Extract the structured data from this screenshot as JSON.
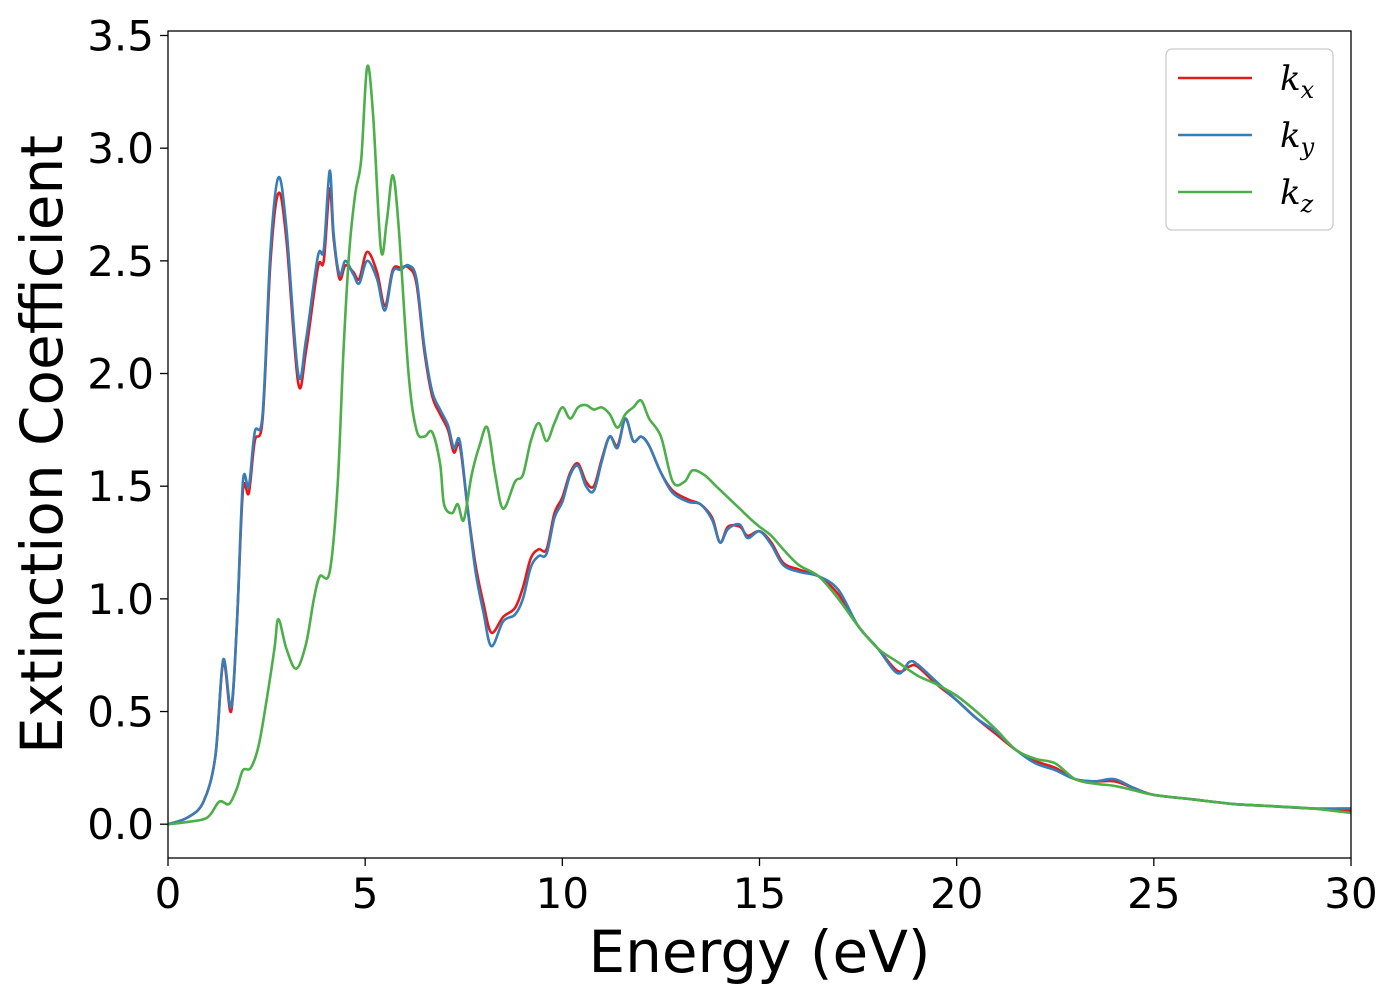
{
  "chart_data": {
    "type": "line",
    "xlabel": "Energy (eV)",
    "ylabel": "Extinction Coefficient",
    "xlim": [
      0,
      30
    ],
    "ylim": [
      -0.15,
      3.52
    ],
    "xticks": [
      0,
      5,
      10,
      15,
      20,
      25,
      30
    ],
    "yticks": [
      0.0,
      0.5,
      1.0,
      1.5,
      2.0,
      2.5,
      3.0,
      3.5
    ],
    "xtick_labels": [
      "0",
      "5",
      "10",
      "15",
      "20",
      "25",
      "30"
    ],
    "ytick_labels": [
      "0.0",
      "0.5",
      "1.0",
      "1.5",
      "2.0",
      "2.5",
      "3.0",
      "3.5"
    ],
    "grid": false,
    "legend_position": "top-right",
    "series": [
      {
        "name": "k_x",
        "label_base": "k",
        "label_sub": "x",
        "color": "#e41a1c",
        "points": [
          [
            0,
            0
          ],
          [
            0.5,
            0.03
          ],
          [
            0.9,
            0.1
          ],
          [
            1.2,
            0.3
          ],
          [
            1.4,
            0.72
          ],
          [
            1.6,
            0.5
          ],
          [
            1.75,
            0.9
          ],
          [
            1.9,
            1.48
          ],
          [
            2.05,
            1.47
          ],
          [
            2.2,
            1.7
          ],
          [
            2.4,
            1.8
          ],
          [
            2.6,
            2.5
          ],
          [
            2.8,
            2.8
          ],
          [
            3,
            2.6
          ],
          [
            3.3,
            1.96
          ],
          [
            3.5,
            2.1
          ],
          [
            3.8,
            2.47
          ],
          [
            3.95,
            2.5
          ],
          [
            4.1,
            2.82
          ],
          [
            4.2,
            2.6
          ],
          [
            4.35,
            2.42
          ],
          [
            4.5,
            2.48
          ],
          [
            4.7,
            2.45
          ],
          [
            4.85,
            2.42
          ],
          [
            5.05,
            2.54
          ],
          [
            5.3,
            2.45
          ],
          [
            5.5,
            2.3
          ],
          [
            5.7,
            2.46
          ],
          [
            5.9,
            2.47
          ],
          [
            6.1,
            2.47
          ],
          [
            6.3,
            2.4
          ],
          [
            6.5,
            2.1
          ],
          [
            6.7,
            1.9
          ],
          [
            6.9,
            1.82
          ],
          [
            7.1,
            1.75
          ],
          [
            7.25,
            1.65
          ],
          [
            7.4,
            1.68
          ],
          [
            7.6,
            1.4
          ],
          [
            7.8,
            1.15
          ],
          [
            8.0,
            0.98
          ],
          [
            8.2,
            0.85
          ],
          [
            8.5,
            0.92
          ],
          [
            8.8,
            0.96
          ],
          [
            9.0,
            1.05
          ],
          [
            9.2,
            1.18
          ],
          [
            9.4,
            1.22
          ],
          [
            9.6,
            1.22
          ],
          [
            9.8,
            1.38
          ],
          [
            10.0,
            1.45
          ],
          [
            10.2,
            1.56
          ],
          [
            10.4,
            1.6
          ],
          [
            10.6,
            1.52
          ],
          [
            10.8,
            1.5
          ],
          [
            11.0,
            1.62
          ],
          [
            11.2,
            1.72
          ],
          [
            11.4,
            1.68
          ],
          [
            11.6,
            1.8
          ],
          [
            11.8,
            1.7
          ],
          [
            12.0,
            1.72
          ],
          [
            12.2,
            1.68
          ],
          [
            12.5,
            1.56
          ],
          [
            12.8,
            1.48
          ],
          [
            13.2,
            1.44
          ],
          [
            13.5,
            1.42
          ],
          [
            13.8,
            1.36
          ],
          [
            14.0,
            1.25
          ],
          [
            14.2,
            1.32
          ],
          [
            14.5,
            1.32
          ],
          [
            14.7,
            1.28
          ],
          [
            15.0,
            1.3
          ],
          [
            15.3,
            1.25
          ],
          [
            15.6,
            1.16
          ],
          [
            16.0,
            1.13
          ],
          [
            16.5,
            1.1
          ],
          [
            17.0,
            1.02
          ],
          [
            17.5,
            0.88
          ],
          [
            18.0,
            0.78
          ],
          [
            18.5,
            0.68
          ],
          [
            18.8,
            0.7
          ],
          [
            19.0,
            0.7
          ],
          [
            19.5,
            0.62
          ],
          [
            20.0,
            0.55
          ],
          [
            20.5,
            0.47
          ],
          [
            21.0,
            0.4
          ],
          [
            21.5,
            0.33
          ],
          [
            22.0,
            0.28
          ],
          [
            22.5,
            0.25
          ],
          [
            23.0,
            0.2
          ],
          [
            23.5,
            0.19
          ],
          [
            24.0,
            0.19
          ],
          [
            24.5,
            0.16
          ],
          [
            25.0,
            0.13
          ],
          [
            26.0,
            0.11
          ],
          [
            27.0,
            0.09
          ],
          [
            28.0,
            0.08
          ],
          [
            29.0,
            0.07
          ],
          [
            30.0,
            0.06
          ]
        ]
      },
      {
        "name": "k_y",
        "label_base": "k",
        "label_sub": "y",
        "color": "#377eb8",
        "points": [
          [
            0,
            0
          ],
          [
            0.5,
            0.03
          ],
          [
            0.9,
            0.1
          ],
          [
            1.2,
            0.3
          ],
          [
            1.4,
            0.73
          ],
          [
            1.6,
            0.52
          ],
          [
            1.75,
            0.9
          ],
          [
            1.9,
            1.52
          ],
          [
            2.05,
            1.5
          ],
          [
            2.2,
            1.74
          ],
          [
            2.4,
            1.82
          ],
          [
            2.6,
            2.55
          ],
          [
            2.8,
            2.87
          ],
          [
            3,
            2.65
          ],
          [
            3.3,
            2.0
          ],
          [
            3.5,
            2.15
          ],
          [
            3.8,
            2.52
          ],
          [
            3.95,
            2.55
          ],
          [
            4.1,
            2.9
          ],
          [
            4.2,
            2.62
          ],
          [
            4.35,
            2.44
          ],
          [
            4.5,
            2.5
          ],
          [
            4.7,
            2.44
          ],
          [
            4.85,
            2.4
          ],
          [
            5.05,
            2.5
          ],
          [
            5.3,
            2.42
          ],
          [
            5.5,
            2.28
          ],
          [
            5.7,
            2.45
          ],
          [
            5.9,
            2.46
          ],
          [
            6.1,
            2.48
          ],
          [
            6.3,
            2.42
          ],
          [
            6.5,
            2.12
          ],
          [
            6.7,
            1.92
          ],
          [
            6.9,
            1.84
          ],
          [
            7.1,
            1.77
          ],
          [
            7.25,
            1.67
          ],
          [
            7.4,
            1.7
          ],
          [
            7.6,
            1.4
          ],
          [
            7.8,
            1.12
          ],
          [
            8.0,
            0.94
          ],
          [
            8.2,
            0.79
          ],
          [
            8.5,
            0.9
          ],
          [
            8.8,
            0.93
          ],
          [
            9.0,
            1.0
          ],
          [
            9.2,
            1.14
          ],
          [
            9.4,
            1.19
          ],
          [
            9.6,
            1.2
          ],
          [
            9.8,
            1.36
          ],
          [
            10.0,
            1.43
          ],
          [
            10.2,
            1.55
          ],
          [
            10.4,
            1.59
          ],
          [
            10.6,
            1.5
          ],
          [
            10.8,
            1.48
          ],
          [
            11.0,
            1.61
          ],
          [
            11.2,
            1.72
          ],
          [
            11.4,
            1.67
          ],
          [
            11.6,
            1.8
          ],
          [
            11.8,
            1.7
          ],
          [
            12.0,
            1.72
          ],
          [
            12.2,
            1.68
          ],
          [
            12.5,
            1.56
          ],
          [
            12.8,
            1.47
          ],
          [
            13.2,
            1.43
          ],
          [
            13.5,
            1.42
          ],
          [
            13.8,
            1.35
          ],
          [
            14.0,
            1.25
          ],
          [
            14.2,
            1.31
          ],
          [
            14.5,
            1.33
          ],
          [
            14.7,
            1.27
          ],
          [
            15.0,
            1.3
          ],
          [
            15.3,
            1.24
          ],
          [
            15.6,
            1.15
          ],
          [
            16.0,
            1.12
          ],
          [
            16.5,
            1.1
          ],
          [
            17.0,
            1.04
          ],
          [
            17.5,
            0.88
          ],
          [
            18.0,
            0.78
          ],
          [
            18.5,
            0.67
          ],
          [
            18.8,
            0.72
          ],
          [
            19.0,
            0.71
          ],
          [
            19.5,
            0.63
          ],
          [
            20.0,
            0.55
          ],
          [
            20.5,
            0.47
          ],
          [
            21.0,
            0.41
          ],
          [
            21.5,
            0.33
          ],
          [
            22.0,
            0.27
          ],
          [
            22.5,
            0.24
          ],
          [
            23.0,
            0.2
          ],
          [
            23.5,
            0.19
          ],
          [
            24.0,
            0.2
          ],
          [
            24.5,
            0.16
          ],
          [
            25.0,
            0.13
          ],
          [
            26.0,
            0.11
          ],
          [
            27.0,
            0.09
          ],
          [
            28.0,
            0.08
          ],
          [
            29.0,
            0.07
          ],
          [
            30.0,
            0.07
          ]
        ]
      },
      {
        "name": "k_z",
        "label_base": "k",
        "label_sub": "z",
        "color": "#4daf4a",
        "points": [
          [
            0,
            0
          ],
          [
            0.5,
            0.01
          ],
          [
            1.0,
            0.03
          ],
          [
            1.3,
            0.1
          ],
          [
            1.55,
            0.09
          ],
          [
            1.75,
            0.16
          ],
          [
            1.9,
            0.24
          ],
          [
            2.1,
            0.25
          ],
          [
            2.3,
            0.35
          ],
          [
            2.5,
            0.55
          ],
          [
            2.7,
            0.78
          ],
          [
            2.8,
            0.91
          ],
          [
            3.0,
            0.78
          ],
          [
            3.25,
            0.69
          ],
          [
            3.5,
            0.8
          ],
          [
            3.7,
            1.0
          ],
          [
            3.85,
            1.1
          ],
          [
            4.1,
            1.12
          ],
          [
            4.3,
            1.5
          ],
          [
            4.45,
            2.1
          ],
          [
            4.6,
            2.55
          ],
          [
            4.75,
            2.8
          ],
          [
            4.9,
            2.95
          ],
          [
            5.05,
            3.36
          ],
          [
            5.2,
            3.15
          ],
          [
            5.4,
            2.55
          ],
          [
            5.55,
            2.68
          ],
          [
            5.7,
            2.88
          ],
          [
            5.85,
            2.65
          ],
          [
            6.1,
            2.0
          ],
          [
            6.3,
            1.75
          ],
          [
            6.5,
            1.72
          ],
          [
            6.7,
            1.74
          ],
          [
            6.9,
            1.6
          ],
          [
            7.0,
            1.42
          ],
          [
            7.2,
            1.38
          ],
          [
            7.35,
            1.42
          ],
          [
            7.5,
            1.35
          ],
          [
            7.7,
            1.55
          ],
          [
            7.9,
            1.68
          ],
          [
            8.1,
            1.76
          ],
          [
            8.3,
            1.55
          ],
          [
            8.5,
            1.4
          ],
          [
            8.8,
            1.52
          ],
          [
            9.0,
            1.55
          ],
          [
            9.2,
            1.7
          ],
          [
            9.4,
            1.78
          ],
          [
            9.6,
            1.7
          ],
          [
            9.8,
            1.78
          ],
          [
            10.0,
            1.85
          ],
          [
            10.2,
            1.8
          ],
          [
            10.4,
            1.85
          ],
          [
            10.6,
            1.86
          ],
          [
            10.8,
            1.84
          ],
          [
            11.0,
            1.85
          ],
          [
            11.2,
            1.82
          ],
          [
            11.4,
            1.76
          ],
          [
            11.6,
            1.82
          ],
          [
            11.8,
            1.85
          ],
          [
            12.0,
            1.88
          ],
          [
            12.2,
            1.8
          ],
          [
            12.5,
            1.72
          ],
          [
            12.8,
            1.52
          ],
          [
            13.1,
            1.52
          ],
          [
            13.3,
            1.57
          ],
          [
            13.6,
            1.55
          ],
          [
            13.9,
            1.5
          ],
          [
            14.2,
            1.45
          ],
          [
            14.5,
            1.4
          ],
          [
            14.8,
            1.35
          ],
          [
            15.0,
            1.32
          ],
          [
            15.3,
            1.28
          ],
          [
            15.6,
            1.22
          ],
          [
            16.0,
            1.15
          ],
          [
            16.5,
            1.1
          ],
          [
            17.0,
            1.0
          ],
          [
            17.5,
            0.88
          ],
          [
            18.0,
            0.78
          ],
          [
            18.5,
            0.72
          ],
          [
            19.0,
            0.66
          ],
          [
            19.5,
            0.62
          ],
          [
            20.0,
            0.57
          ],
          [
            20.5,
            0.5
          ],
          [
            21.0,
            0.42
          ],
          [
            21.5,
            0.33
          ],
          [
            22.0,
            0.29
          ],
          [
            22.5,
            0.27
          ],
          [
            23.0,
            0.2
          ],
          [
            23.5,
            0.18
          ],
          [
            24.0,
            0.17
          ],
          [
            24.5,
            0.15
          ],
          [
            25.0,
            0.13
          ],
          [
            26.0,
            0.11
          ],
          [
            27.0,
            0.09
          ],
          [
            28.0,
            0.08
          ],
          [
            29.0,
            0.07
          ],
          [
            30.0,
            0.05
          ]
        ]
      }
    ]
  }
}
